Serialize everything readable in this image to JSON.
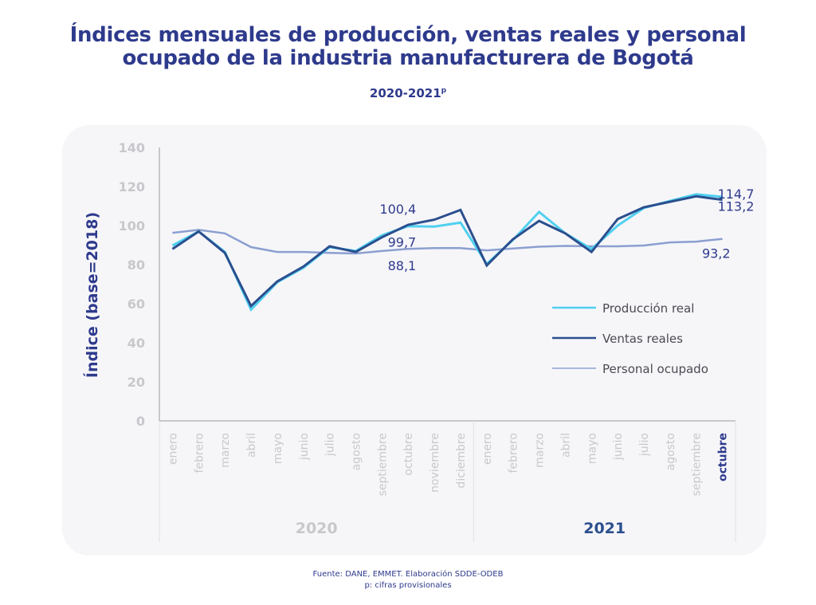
{
  "header": {
    "title_line1": "Índices mensuales de producción, ventas reales y personal",
    "title_line2": "ocupado de la industria manufacturera de Bogotá",
    "subtitle": "2020-2021",
    "subtitle_sup": "p"
  },
  "footer": {
    "source": "Fuente: DANE, EMMET. Elaboración SDDE-ODEB",
    "note": "p: cifras provisionales"
  },
  "colors": {
    "title": "#2e3a8c",
    "produccion": "#4fd0f0",
    "ventas": "#2b4f8e",
    "personal": "#8b9fd0",
    "tick": "#c8c8cc",
    "highlight": "#2e3a8c"
  },
  "chart_data": {
    "type": "line",
    "title": "Índices mensuales de producción, ventas reales y personal ocupado de la industria manufacturera de Bogotá",
    "subtitle": "2020-2021p",
    "xlabel": "",
    "ylabel": "Índice (base=2018)",
    "ylim": [
      0,
      140
    ],
    "yticks": [
      0,
      20,
      40,
      60,
      80,
      100,
      120,
      140
    ],
    "grid": false,
    "legend_position": "right-center",
    "groups": [
      {
        "label": "2020",
        "categories": [
          "enero",
          "febrero",
          "marzo",
          "abril",
          "mayo",
          "junio",
          "julio",
          "agosto",
          "septiembre",
          "octubre",
          "noviembre",
          "diciembre"
        ],
        "highlight": false
      },
      {
        "label": "2021",
        "categories": [
          "enero",
          "febrero",
          "marzo",
          "abril",
          "mayo",
          "junio",
          "julio",
          "agosto",
          "septiembre",
          "octubre"
        ],
        "highlight": true
      }
    ],
    "categories": [
      "enero",
      "febrero",
      "marzo",
      "abril",
      "mayo",
      "junio",
      "julio",
      "agosto",
      "septiembre",
      "octubre",
      "noviembre",
      "diciembre",
      "enero",
      "febrero",
      "marzo",
      "abril",
      "mayo",
      "junio",
      "julio",
      "agosto",
      "septiembre",
      "octubre"
    ],
    "highlight_category_index": 21,
    "series": [
      {
        "name": "Producción real",
        "key": "produccion",
        "values": [
          89.8,
          97.0,
          86.5,
          57.0,
          71.0,
          78.4,
          89.0,
          87.0,
          95.0,
          99.7,
          99.5,
          101.5,
          80.4,
          92.6,
          107.0,
          96.0,
          88.0,
          100.0,
          109.0,
          112.6,
          116.0,
          114.7
        ]
      },
      {
        "name": "Ventas reales",
        "key": "ventas",
        "values": [
          88.0,
          97.0,
          86.0,
          58.8,
          71.4,
          79.0,
          89.4,
          86.5,
          94.0,
          100.4,
          103.0,
          108.0,
          79.6,
          93.0,
          102.4,
          96.0,
          86.5,
          103.3,
          109.4,
          112.2,
          115.0,
          113.2
        ]
      },
      {
        "name": "Personal ocupado",
        "key": "personal",
        "values": [
          96.3,
          97.8,
          96.0,
          89.0,
          86.5,
          86.5,
          86.0,
          85.7,
          87.0,
          88.1,
          88.5,
          88.5,
          87.3,
          88.3,
          89.2,
          89.6,
          89.4,
          89.4,
          89.8,
          91.4,
          91.8,
          93.2
        ]
      }
    ],
    "annotations": [
      {
        "text": "100,4",
        "series": "ventas",
        "index": 9
      },
      {
        "text": "99,7",
        "series": "produccion",
        "index": 9
      },
      {
        "text": "88,1",
        "series": "personal",
        "index": 9
      },
      {
        "text": "114,7",
        "series": "produccion",
        "index": 21
      },
      {
        "text": "113,2",
        "series": "ventas",
        "index": 21
      },
      {
        "text": "93,2",
        "series": "personal",
        "index": 21
      }
    ]
  }
}
